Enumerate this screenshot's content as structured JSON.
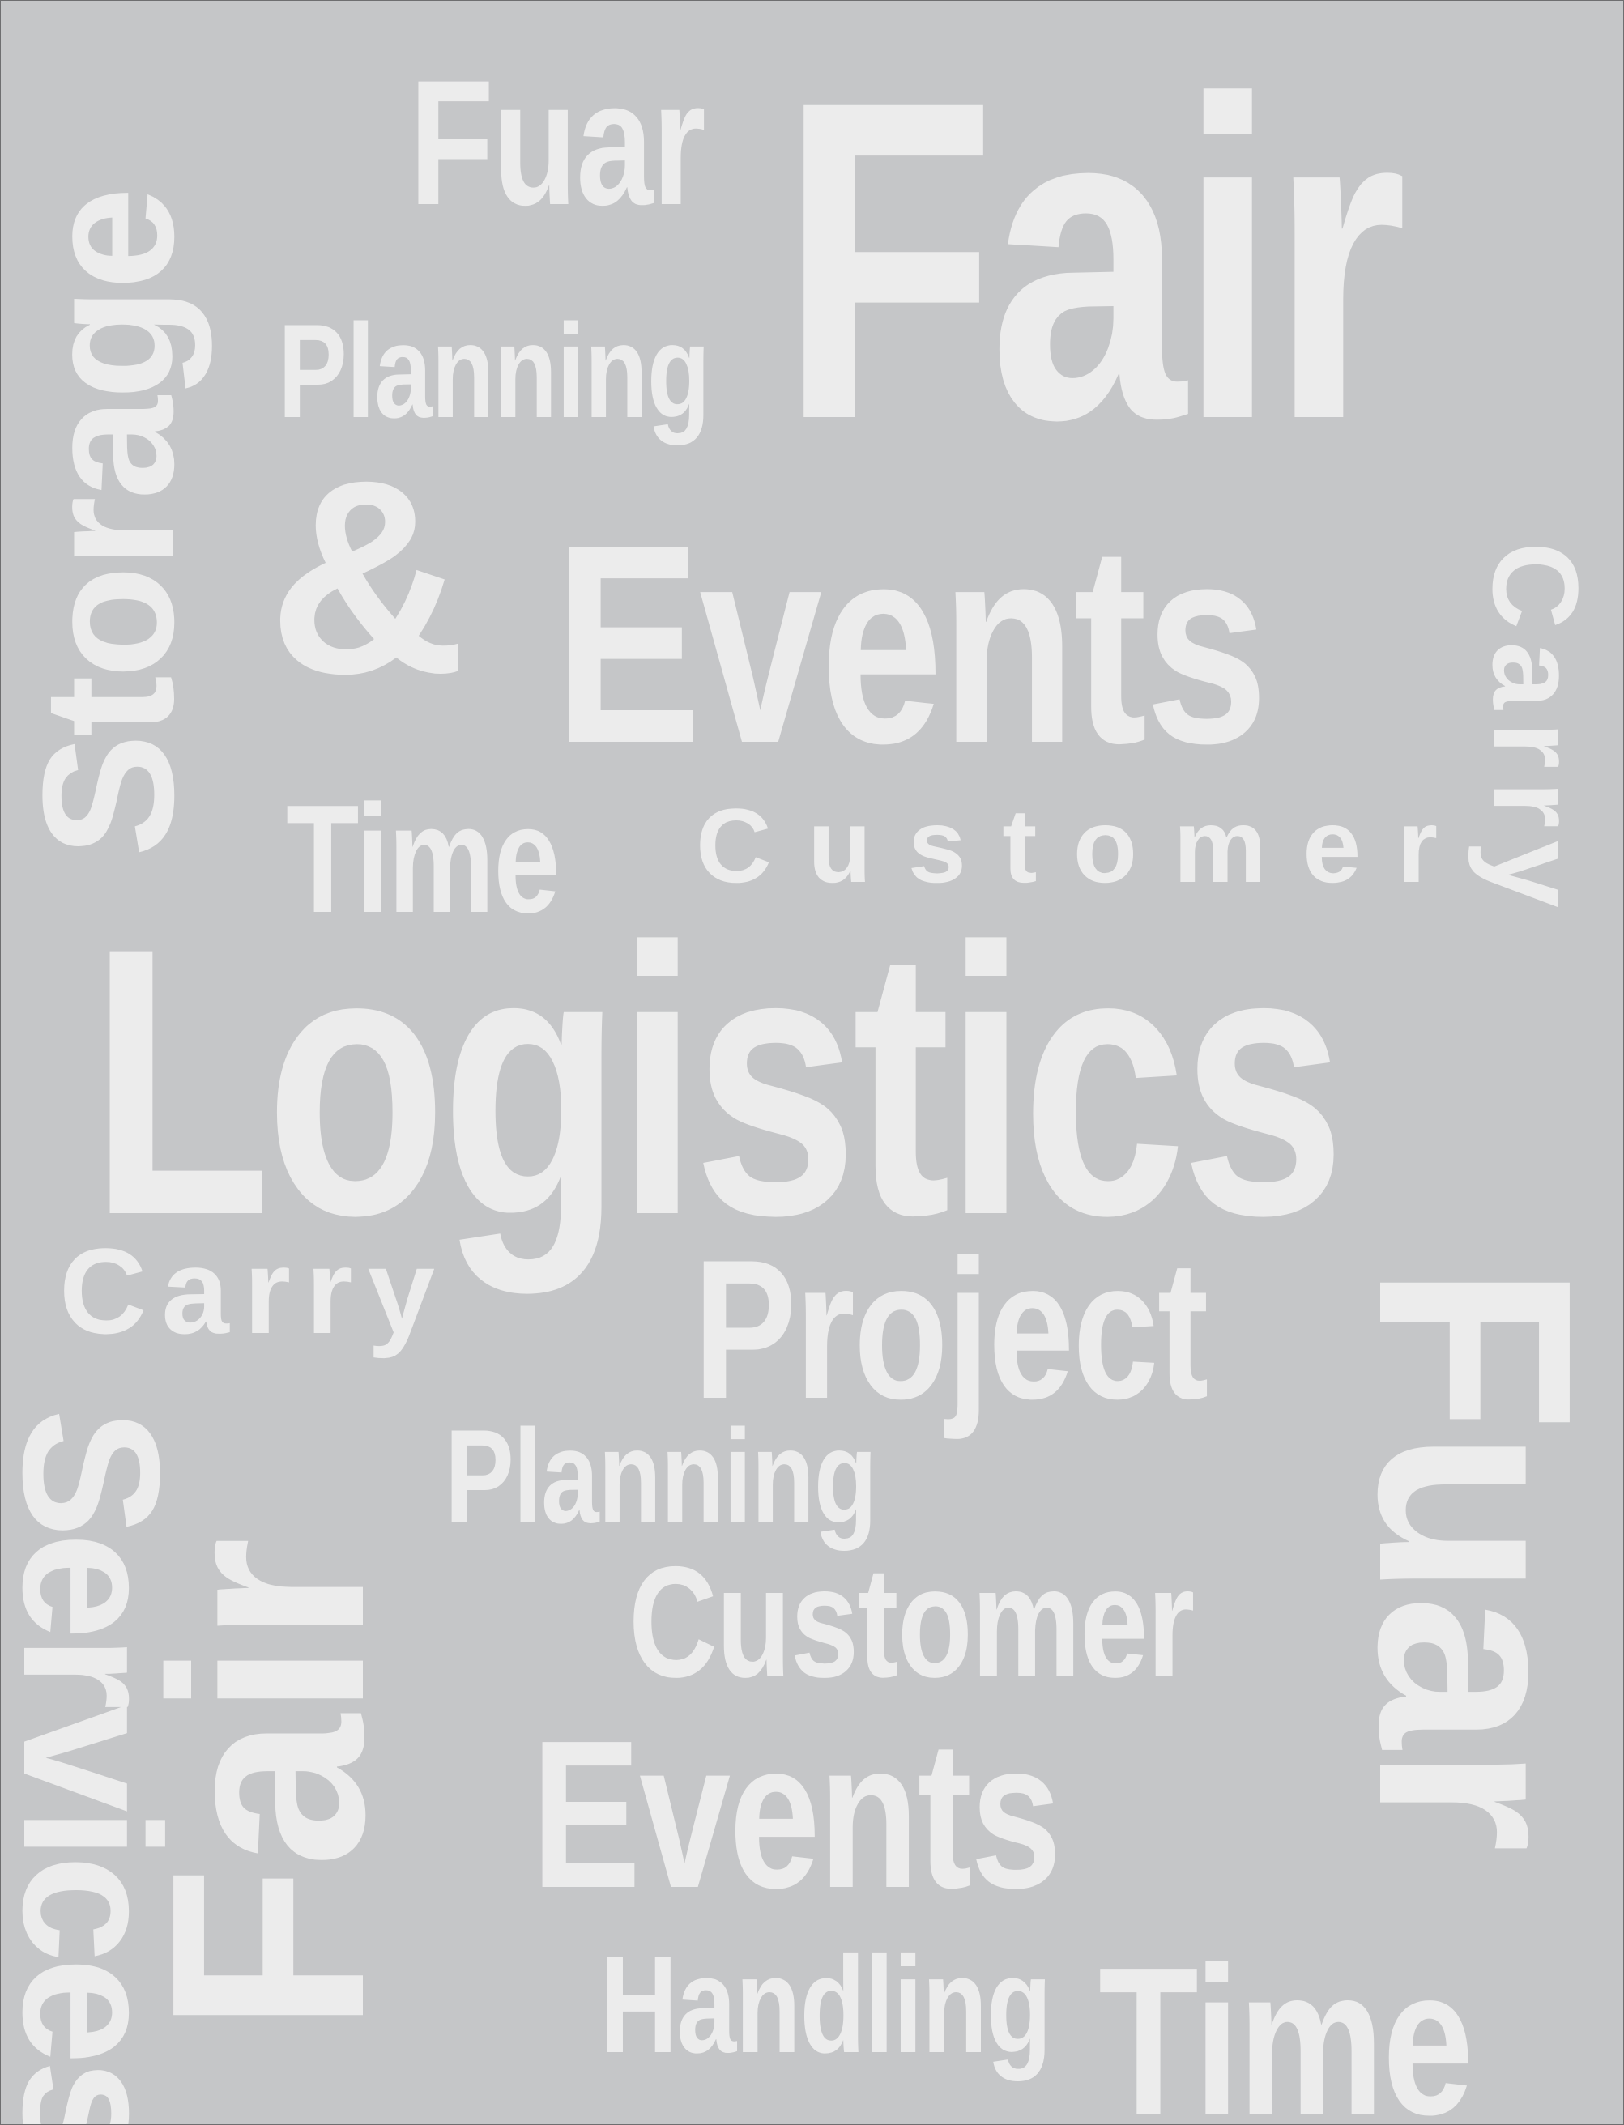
{
  "background_color": "#c5c6c8",
  "text_color": "#ececec",
  "border_color": "#6e6e70",
  "words": {
    "storage": "Storage",
    "fuar_top": "Fuar",
    "fair_top": "Fair",
    "planning_top": "Planning",
    "ampersand": "&",
    "events_top": "Events",
    "carry_right": "Carry",
    "time_top": "Time",
    "customer_top": "Customer",
    "logistics": "Logistics",
    "carry_mid": "Carry",
    "project": "Project",
    "fuar_right": "Fuar",
    "services": "Services",
    "planning_mid": "Planning",
    "fair_left": "Fair",
    "customer_mid": "Customer",
    "events_bottom": "Events",
    "handling": "Handling",
    "time_bottom": "Time"
  }
}
